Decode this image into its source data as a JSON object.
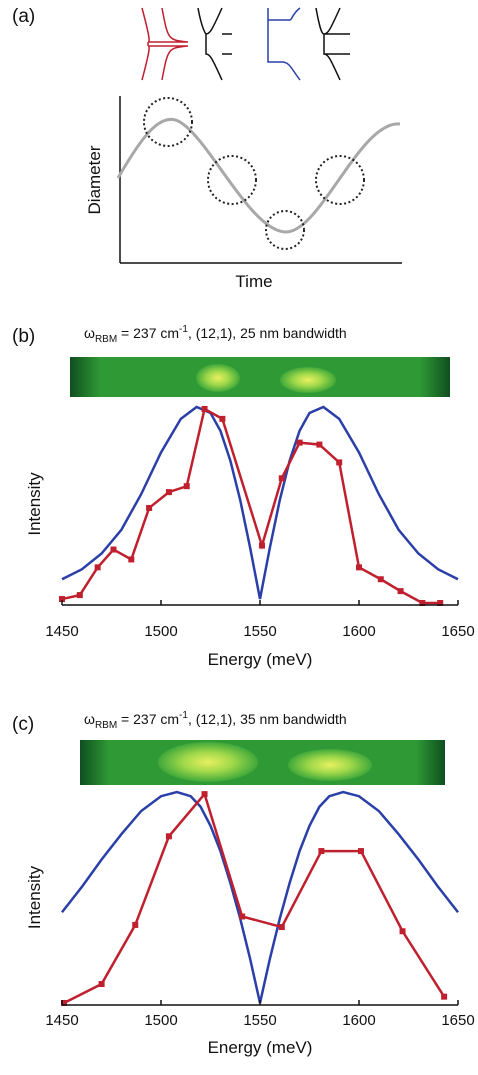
{
  "panel_a": {
    "label": "(a)",
    "xlabel": "Time",
    "ylabel": "Diameter"
  },
  "chart_data": [
    {
      "type": "line",
      "label": "(b)",
      "title": {
        "symbol": "ω",
        "sub": "RBM",
        "mid": " = 237 cm",
        "sup": "-1",
        "end": ", (12,1), 25 nm bandwidth"
      },
      "xlabel": "Energy (meV)",
      "ylabel": "Intensity",
      "xlim": [
        1450,
        1650
      ],
      "xticks": [
        1450,
        1500,
        1550,
        1600,
        1650
      ],
      "ylim": [
        0,
        1
      ],
      "series": [
        {
          "color": "#2b3fa8",
          "marker": "none",
          "x": [
            1450,
            1460,
            1470,
            1480,
            1490,
            1500,
            1510,
            1518,
            1525,
            1530,
            1535,
            1540,
            1545,
            1550,
            1555,
            1560,
            1565,
            1570,
            1575,
            1582,
            1590,
            1600,
            1610,
            1620,
            1630,
            1640,
            1650
          ],
          "values": [
            0.12,
            0.17,
            0.25,
            0.37,
            0.55,
            0.76,
            0.93,
            0.99,
            0.96,
            0.87,
            0.72,
            0.52,
            0.28,
            0.02,
            0.28,
            0.52,
            0.72,
            0.87,
            0.96,
            0.99,
            0.93,
            0.76,
            0.55,
            0.37,
            0.25,
            0.17,
            0.12
          ]
        },
        {
          "color": "#c0202e",
          "marker": "square",
          "x": [
            1450,
            1459,
            1468,
            1476,
            1485,
            1494,
            1504,
            1513,
            1522,
            1531,
            1551,
            1561,
            1570,
            1580,
            1590,
            1600,
            1611,
            1621,
            1632,
            1641
          ],
          "values": [
            0.02,
            0.04,
            0.18,
            0.27,
            0.22,
            0.48,
            0.56,
            0.59,
            0.98,
            0.93,
            0.29,
            0.63,
            0.81,
            0.8,
            0.71,
            0.18,
            0.12,
            0.06,
            0,
            0
          ]
        }
      ]
    },
    {
      "type": "line",
      "label": "(c)",
      "title": {
        "symbol": "ω",
        "sub": "RBM",
        "mid": " = 237 cm",
        "sup": "-1",
        "end": ", (12,1), 35 nm bandwidth"
      },
      "xlabel": "Energy (meV)",
      "ylabel": "Intensity",
      "xlim": [
        1450,
        1650
      ],
      "xticks": [
        1450,
        1500,
        1550,
        1600,
        1650
      ],
      "ylim": [
        0,
        1
      ],
      "series": [
        {
          "color": "#2b3fa8",
          "marker": "none",
          "x": [
            1450,
            1460,
            1470,
            1480,
            1490,
            1500,
            1508,
            1515,
            1520,
            1525,
            1530,
            1535,
            1540,
            1545,
            1550,
            1555,
            1560,
            1565,
            1570,
            1575,
            1580,
            1585,
            1592,
            1600,
            1610,
            1620,
            1630,
            1640,
            1650
          ],
          "values": [
            0.43,
            0.55,
            0.68,
            0.8,
            0.91,
            0.98,
            1,
            0.98,
            0.93,
            0.84,
            0.72,
            0.57,
            0.4,
            0.21,
            0,
            0.21,
            0.4,
            0.57,
            0.72,
            0.84,
            0.93,
            0.98,
            1,
            0.98,
            0.91,
            0.8,
            0.68,
            0.55,
            0.43
          ]
        },
        {
          "color": "#c0202e",
          "marker": "square",
          "x": [
            1451,
            1470,
            1487,
            1504,
            1522,
            1541,
            1561,
            1581,
            1601,
            1622,
            1643
          ],
          "values": [
            0,
            0.09,
            0.37,
            0.79,
            0.99,
            0.41,
            0.36,
            0.72,
            0.72,
            0.34,
            0.03
          ]
        }
      ]
    }
  ]
}
